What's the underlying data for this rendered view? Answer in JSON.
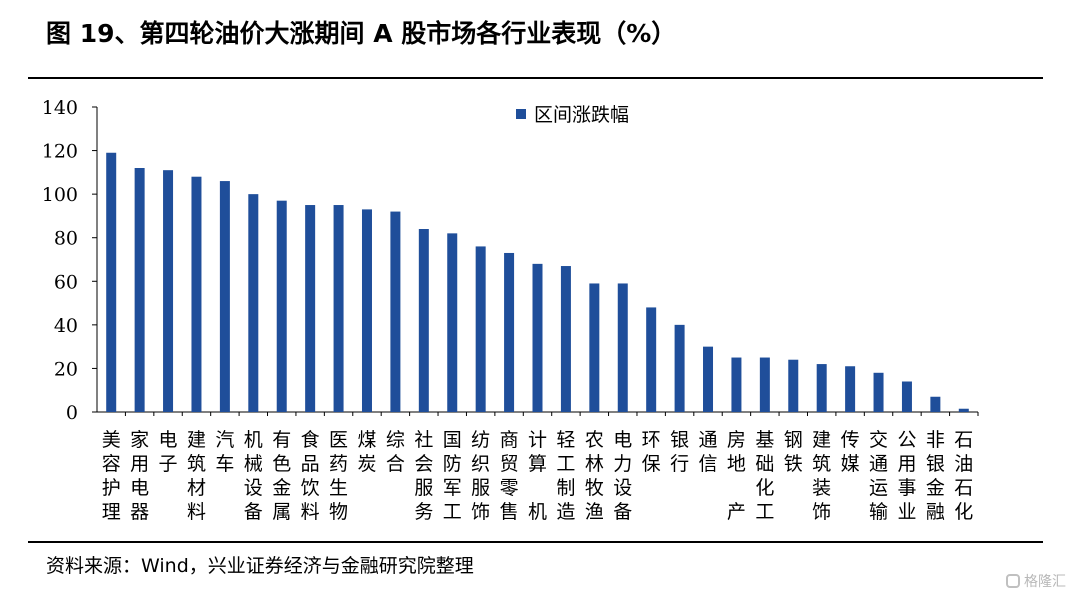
{
  "title": "图 19、第四轮油价大涨期间 A 股市场各行业表现（%）",
  "source": "资料来源：Wind，兴业证券经济与金融研究院整理",
  "watermark": "格隆汇",
  "colors": {
    "bar": "#1f4e9a"
  },
  "chart_data": {
    "type": "bar",
    "categories": [
      "美容护理",
      "家用电器",
      "电子",
      "建筑材料",
      "汽车",
      "机械设备",
      "有色金属",
      "食品饮料",
      "医药生物",
      "煤炭",
      "综合",
      "社会服务",
      "国防军工",
      "纺织服饰",
      "商贸零售",
      "计算机",
      "轻工制造",
      "农林牧渔",
      "电力设备",
      "环保",
      "银行",
      "通信",
      "房地产",
      "基础化工",
      "钢铁",
      "建筑装饰",
      "传媒",
      "交通运输",
      "公用事业",
      "非银金融",
      "石油石化"
    ],
    "series": [
      {
        "name": "区间涨跌幅",
        "values": [
          119,
          112,
          111,
          108,
          106,
          100,
          97,
          95,
          95,
          93,
          92,
          84,
          82,
          76,
          73,
          68,
          67,
          59,
          59,
          48,
          40,
          30,
          25,
          25,
          24,
          22,
          21,
          18,
          14,
          7,
          1.5
        ]
      }
    ],
    "ylim": [
      0,
      140
    ],
    "yticks": [
      0,
      20,
      40,
      60,
      80,
      100,
      120,
      140
    ],
    "legend_position": "top-center",
    "grid": false
  }
}
